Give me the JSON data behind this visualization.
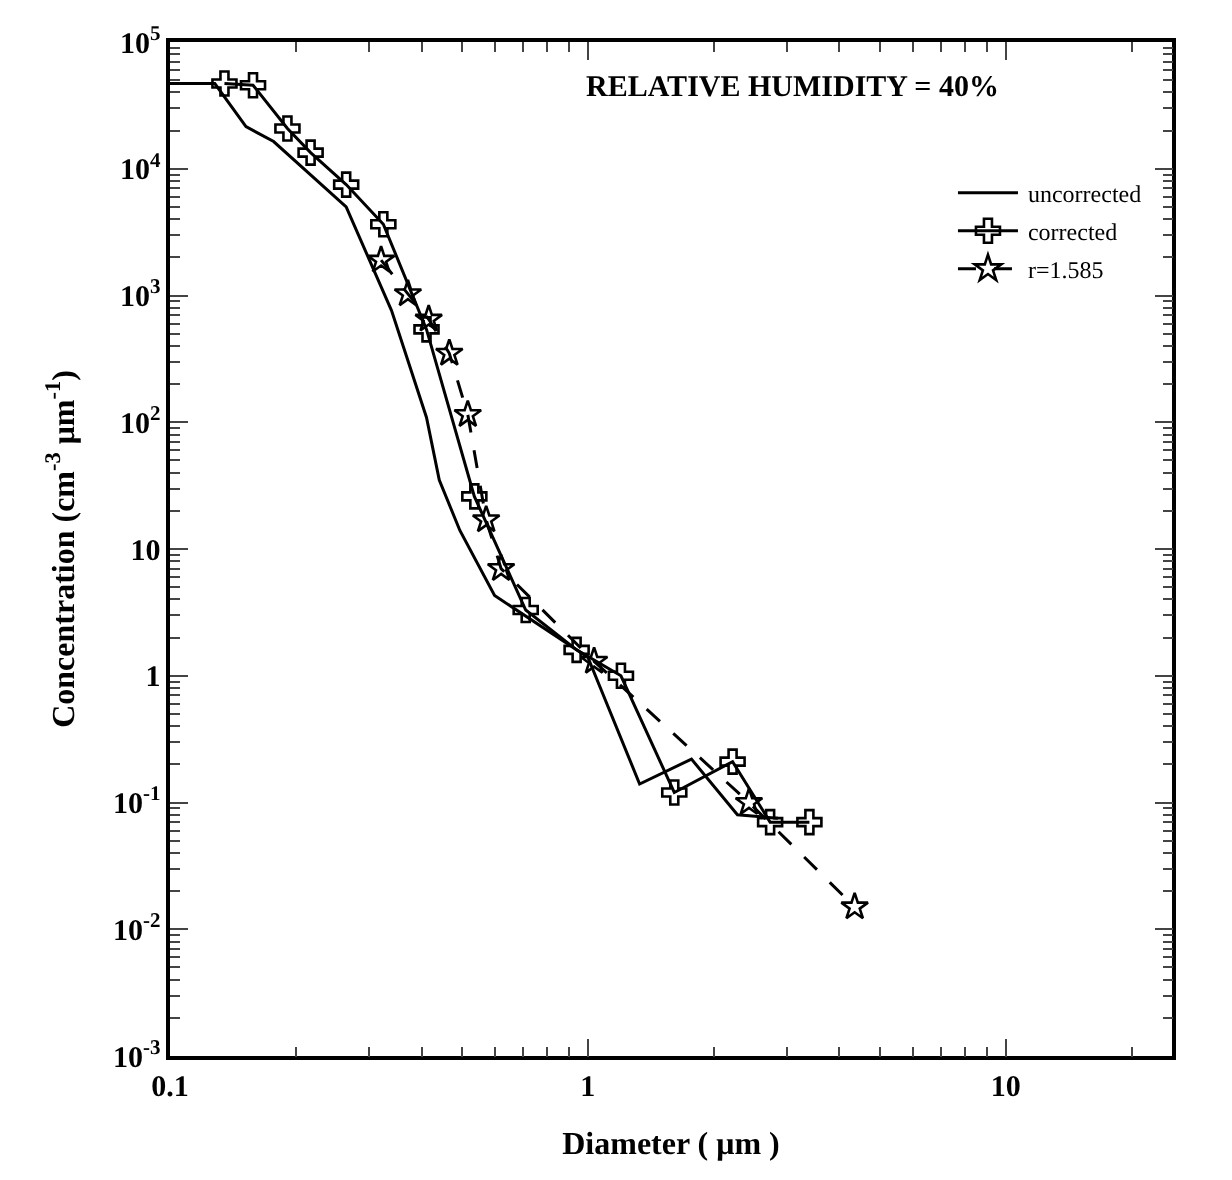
{
  "chart_data": {
    "type": "line",
    "title": "RELATIVE HUMIDITY = 40%",
    "xlabel": "Diameter ( μm )",
    "ylabel": "Concentration (cm$^{-3}$ μm$^{-1}$)",
    "log": "xy",
    "legend": "top right",
    "xlim": [
      0.1,
      25
    ],
    "xticks": [
      0.1,
      1,
      10
    ],
    "ylim": [
      0.001,
      100000
    ],
    "yticks": [
      {
        "value": 0.001,
        "label": "10$^{-3}$"
      },
      {
        "value": 0.01,
        "label": "10$^{-2}$"
      },
      {
        "value": 0.1,
        "label": "10$^{-1}$"
      },
      1,
      10,
      {
        "value": 100,
        "label": "10$^{2}$"
      },
      {
        "value": 1000,
        "label": "10$^{3}$"
      },
      {
        "value": 10000,
        "label": "10$^{4}$"
      },
      {
        "value": 100000,
        "label": "10$^{5}$"
      }
    ],
    "series": [
      {
        "name": "uncorrected",
        "color": "#000000",
        "marker": "none",
        "line_style": "solid",
        "x": [
          0.1,
          0.128,
          0.152,
          0.177,
          0.264,
          0.339,
          0.411,
          0.441,
          0.494,
          0.598,
          1.0,
          1.33,
          1.77,
          2.28,
          2.85
        ],
        "values": [
          47000,
          47000,
          21500,
          16400,
          5000,
          760,
          109,
          35,
          14,
          4.3,
          1.4,
          0.14,
          0.22,
          0.08,
          0.075
        ]
      },
      {
        "name": "corrected",
        "color": "#000000",
        "marker": "cross",
        "line_style": "solid",
        "x": [
          0.135,
          0.158,
          0.191,
          0.217,
          0.264,
          0.324,
          0.411,
          0.535,
          0.71,
          0.94,
          1.2,
          1.61,
          2.22,
          2.73,
          3.39
        ],
        "values": [
          47000,
          45600,
          20800,
          13400,
          7500,
          3650,
          540,
          26,
          3.3,
          1.6,
          1.0,
          0.12,
          0.21,
          0.07,
          0.07
        ]
      },
      {
        "name": "r=1.585",
        "color": "#000000",
        "marker": "star",
        "line_style": "dashed",
        "x": [
          0.32,
          0.371,
          0.416,
          0.466,
          0.516,
          0.571,
          0.62,
          1.035,
          2.43,
          4.35
        ],
        "values": [
          1900,
          1030,
          650,
          350,
          115,
          17,
          7,
          1.3,
          0.1,
          0.015
        ]
      }
    ]
  }
}
